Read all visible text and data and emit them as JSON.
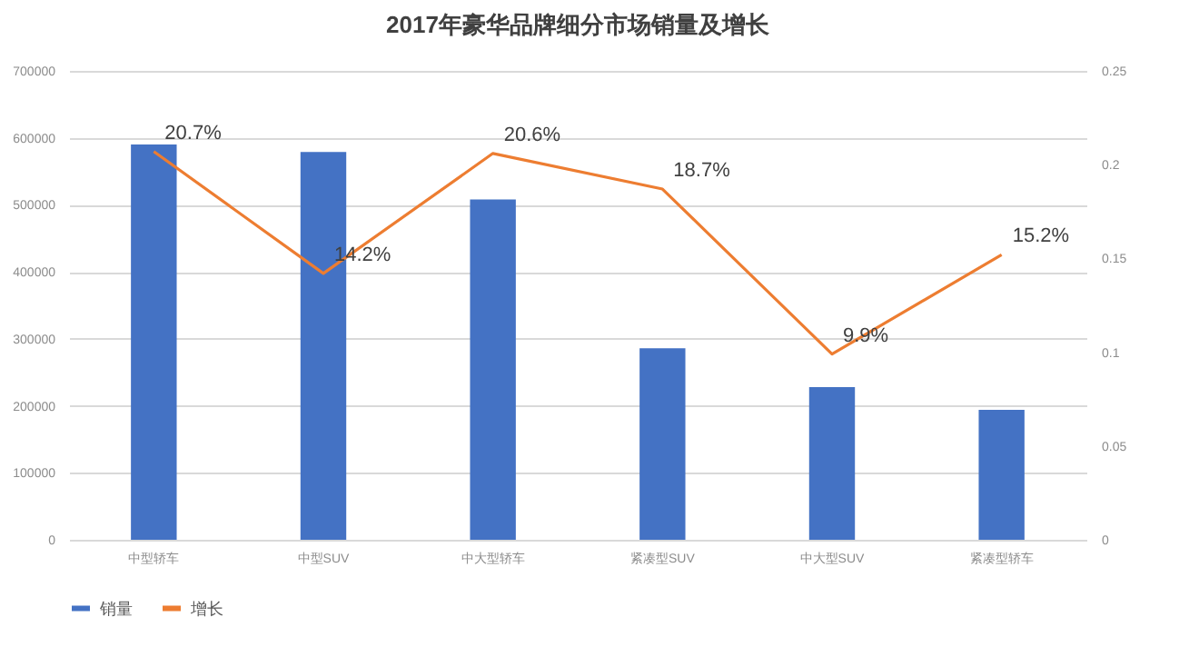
{
  "chart_data": {
    "type": "bar",
    "title": "2017年豪华品牌细分市场销量及增长",
    "categories": [
      "中型轿车",
      "中型SUV",
      "中大型轿车",
      "紧凑型SUV",
      "中大型SUV",
      "紧凑型轿车"
    ],
    "series": [
      {
        "name": "销量",
        "color": "#4472c4",
        "values": [
          590000,
          579000,
          508000,
          286000,
          228000,
          194000
        ]
      },
      {
        "name": "增长",
        "type": "line",
        "axis": "y2",
        "color": "#ed7d31",
        "values": [
          0.207,
          0.142,
          0.206,
          0.187,
          0.099,
          0.152
        ],
        "value_labels": [
          "20.7%",
          "14.2%",
          "20.6%",
          "18.7%",
          "9.9%",
          "15.2%"
        ]
      }
    ],
    "ylim": [
      0,
      700000
    ],
    "yticks": [
      0,
      100000,
      200000,
      300000,
      400000,
      500000,
      600000,
      700000
    ],
    "y2lim": [
      0,
      0.25
    ],
    "y2ticks": [
      0,
      0.05,
      0.1,
      0.15,
      0.2,
      0.25
    ],
    "grid": "y",
    "legend": "bottom",
    "marker": "none",
    "line_style": "solid"
  }
}
